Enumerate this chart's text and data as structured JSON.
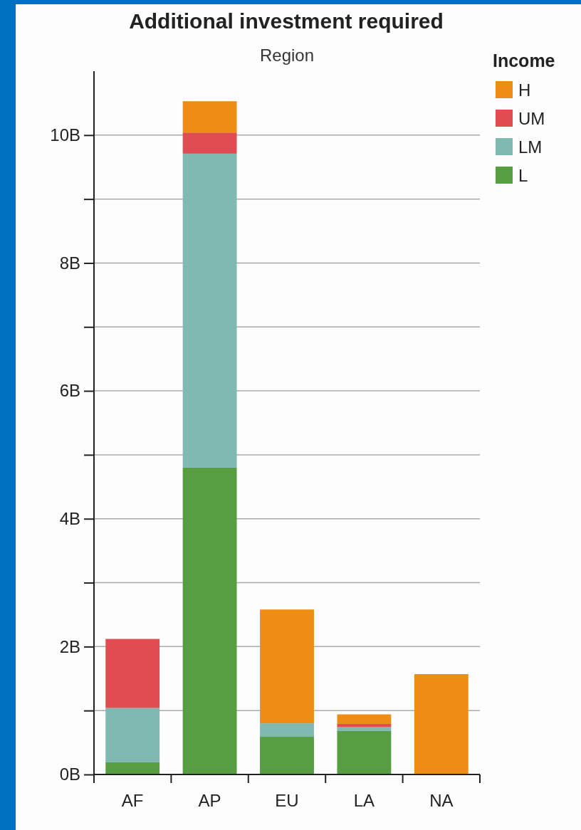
{
  "chart_data": {
    "type": "bar",
    "title": "Additional investment required",
    "xlabel": "Region",
    "legend_title": "Income",
    "categories": [
      "AF",
      "AP",
      "EU",
      "LA",
      "NA"
    ],
    "stacked": true,
    "series": [
      {
        "name": "L",
        "color": "#579d42",
        "values": [
          0.19,
          4.8,
          0.59,
          0.68,
          0
        ]
      },
      {
        "name": "LM",
        "color": "#80b8b2",
        "values": [
          0.85,
          4.91,
          0.21,
          0.06,
          0
        ]
      },
      {
        "name": "UM",
        "color": "#e04c52",
        "values": [
          1.08,
          0.33,
          0,
          0.05,
          0
        ]
      },
      {
        "name": "H",
        "color": "#ee8c14",
        "values": [
          0,
          0.49,
          1.78,
          0.15,
          1.57
        ]
      }
    ],
    "ylim": [
      0,
      11
    ],
    "yticks": [
      {
        "value": 0,
        "label": "0B"
      },
      {
        "value": 1,
        "label": null
      },
      {
        "value": 2,
        "label": "2B"
      },
      {
        "value": 3,
        "label": null
      },
      {
        "value": 4,
        "label": "4B"
      },
      {
        "value": 5,
        "label": null
      },
      {
        "value": 6,
        "label": "6B"
      },
      {
        "value": 7,
        "label": null
      },
      {
        "value": 8,
        "label": "8B"
      },
      {
        "value": 9,
        "label": null
      },
      {
        "value": 10,
        "label": "10B"
      }
    ],
    "grid": "y",
    "legend": "top right"
  }
}
